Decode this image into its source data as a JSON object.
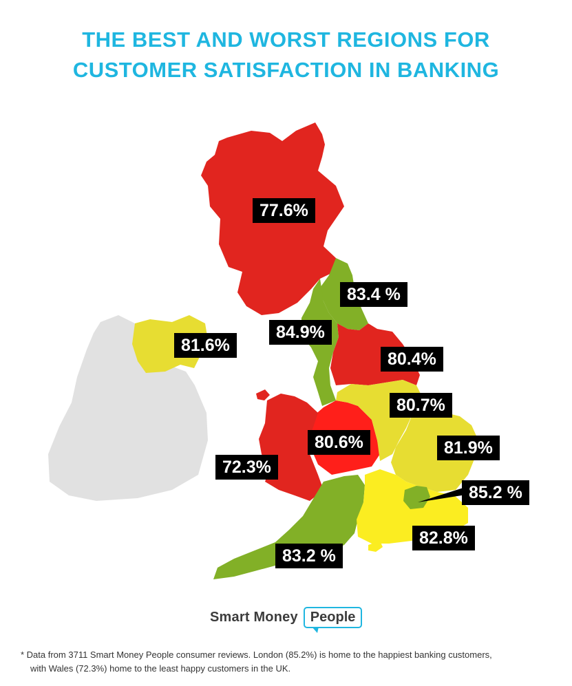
{
  "title": {
    "line1": "THE BEST AND WORST REGIONS FOR",
    "line2": "CUSTOMER SATISFACTION IN BANKING"
  },
  "colors": {
    "title": "#1fb6e0",
    "low": "#e1251f",
    "mid": "#e7dd32",
    "high": "#82b027",
    "ireland": "#e1e1e1",
    "label_bg": "#000000"
  },
  "regions": {
    "scotland": "77.6%",
    "north_east": "83.4 %",
    "north_west": "84.9%",
    "northern_ireland": "81.6%",
    "yorkshire": "80.4%",
    "east_midlands": "80.7%",
    "west_midlands": "80.6%",
    "east_of_england": "81.9%",
    "wales": "72.3%",
    "london": "85.2 %",
    "south_east": "82.8%",
    "south_west": "83.2 %"
  },
  "brand": {
    "smart": "Smart Money",
    "people": "People"
  },
  "footnote": {
    "line1": "* Data from 3711 Smart Money People consumer reviews. London (85.2%) is home to the happiest banking customers,",
    "line2": "with Wales (72.3%) home to the least happy customers in the UK."
  }
}
